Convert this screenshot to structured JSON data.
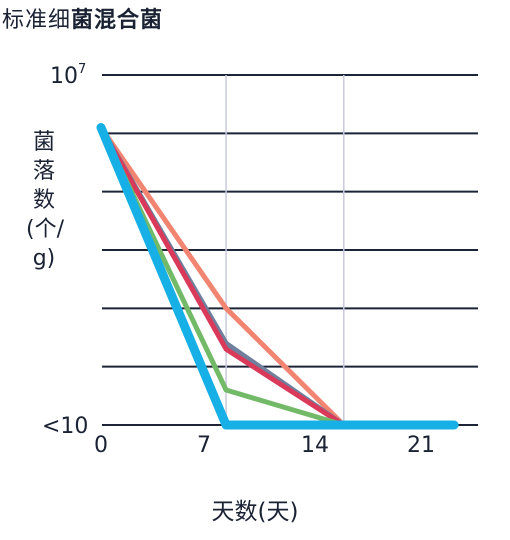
{
  "chart_data": {
    "type": "line",
    "title_prefix": "标准细",
    "title_main": "菌混合菌",
    "ylabel": "菌落数(个/g)",
    "xlabel": "天数(天)",
    "y_ticks": [
      {
        "label_base": "10",
        "label_exp": "7"
      },
      {
        "label_base": "<10",
        "label_exp": ""
      }
    ],
    "ylim": [
      1,
      7
    ],
    "x_ticks": [
      "0",
      "7",
      "14",
      "21"
    ],
    "xlim": [
      0,
      24
    ],
    "grid": true,
    "legend": "none",
    "series": [
      {
        "color": "#f28472",
        "x": [
          0,
          8.5,
          16.5
        ],
        "y": [
          6.1,
          3.0,
          1.0
        ]
      },
      {
        "color": "#6f7f9c",
        "x": [
          0,
          8.5,
          16.5
        ],
        "y": [
          6.1,
          2.4,
          1.0
        ]
      },
      {
        "color": "#d93a5a",
        "x": [
          0,
          8.5,
          16.5
        ],
        "y": [
          6.1,
          2.3,
          1.0
        ]
      },
      {
        "color": "#73ba68",
        "x": [
          0,
          8.5,
          16.5
        ],
        "y": [
          6.1,
          1.6,
          1.0
        ]
      },
      {
        "color": "#16b0e6",
        "x": [
          0,
          8.5,
          24
        ],
        "y": [
          6.1,
          1.0,
          1.0
        ]
      }
    ]
  }
}
